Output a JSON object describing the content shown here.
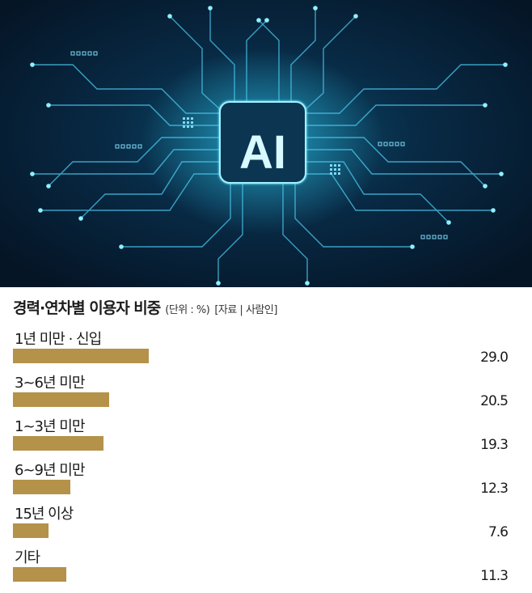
{
  "hero": {
    "logo_text": "AI"
  },
  "chart_data": {
    "type": "bar",
    "orientation": "horizontal",
    "title": "경력·연차별 이용자 비중",
    "unit_note": "(단위 : %)",
    "source_note": "[자료 | 사람인]",
    "categories": [
      "1년 미만 · 신입",
      "3~6년 미만",
      "1~3년 미만",
      "6~9년 미만",
      "15년 이상",
      "기타"
    ],
    "values": [
      29.0,
      20.5,
      19.3,
      12.3,
      7.6,
      11.3
    ],
    "value_labels": [
      "29.0",
      "20.5",
      "19.3",
      "12.3",
      "7.6",
      "11.3"
    ],
    "xlim": [
      0,
      100
    ],
    "bar_color": "#b4924a",
    "grid": false,
    "legend": "none"
  }
}
